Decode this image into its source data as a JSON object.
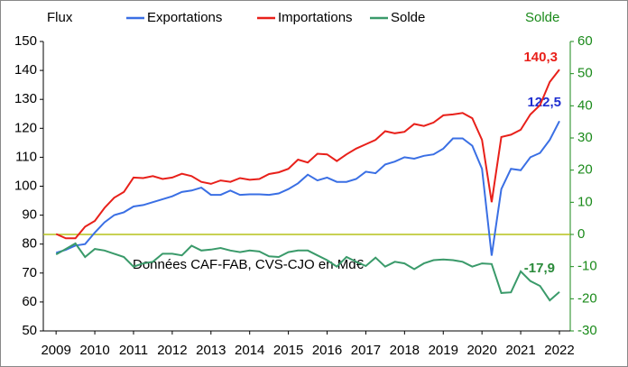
{
  "chart_data": {
    "type": "line",
    "y_label": "Flux",
    "y2_label": "Solde",
    "annotation": "Données CAF-FAB, CVS-CJO en Md€",
    "x": [
      2009,
      2009.25,
      2009.5,
      2009.75,
      2010,
      2010.25,
      2010.5,
      2010.75,
      2011,
      2011.25,
      2011.5,
      2011.75,
      2012,
      2012.25,
      2012.5,
      2012.75,
      2013,
      2013.25,
      2013.5,
      2013.75,
      2014,
      2014.25,
      2014.5,
      2014.75,
      2015,
      2015.25,
      2015.5,
      2015.75,
      2016,
      2016.25,
      2016.5,
      2016.75,
      2017,
      2017.25,
      2017.5,
      2017.75,
      2018,
      2018.25,
      2018.5,
      2018.75,
      2019,
      2019.25,
      2019.5,
      2019.75,
      2020,
      2020.25,
      2020.5,
      2020.75,
      2021,
      2021.25,
      2021.5,
      2021.75,
      2022
    ],
    "series": [
      {
        "name": "Exportations",
        "color": "#3a6fe4",
        "label_color": "#1f2fd0",
        "last_label": "122,5",
        "values": [
          77,
          78,
          79.5,
          80,
          84,
          87.5,
          90,
          91,
          93,
          93.5,
          94.5,
          95.5,
          96.5,
          98,
          98.5,
          99.5,
          97,
          97,
          98.5,
          97,
          97.2,
          97.2,
          97,
          97.5,
          99,
          101,
          104,
          102,
          103,
          101.5,
          101.5,
          102.5,
          105,
          104.5,
          107.5,
          108.5,
          110,
          109.5,
          110.5,
          111,
          113,
          116.5,
          116.5,
          114,
          106,
          76,
          99,
          106,
          105.5,
          110,
          111.5,
          116,
          122.5
        ]
      },
      {
        "name": "Importations",
        "color": "#e8201a",
        "label_color": "#e8201a",
        "last_label": "140,3",
        "values": [
          83.5,
          82,
          82,
          86,
          88,
          92.5,
          96,
          98,
          103,
          102.8,
          103.5,
          102.5,
          103,
          104.3,
          103.5,
          101.5,
          100.8,
          102,
          101.5,
          102.8,
          102.2,
          102.5,
          104.2,
          104.8,
          106,
          109.2,
          108.2,
          111.2,
          111,
          108.7,
          111,
          113,
          114.5,
          116,
          119,
          118.3,
          118.8,
          121.5,
          120.8,
          122,
          124.5,
          124.8,
          125.3,
          123.5,
          116,
          94.5,
          117,
          117.8,
          119.5,
          124.8,
          128,
          136,
          140.3
        ]
      },
      {
        "name": "Solde",
        "color": "#3a9a6a",
        "label_color": "#2a8a3a",
        "last_label": "-17,9",
        "axis": "y2",
        "values": [
          -6.2,
          -4.5,
          -2.8,
          -7,
          -4.5,
          -5,
          -6,
          -7,
          -10,
          -9,
          -8.5,
          -6,
          -6,
          -6.5,
          -3.5,
          -5,
          -4.7,
          -4.2,
          -5,
          -5.5,
          -5,
          -5.3,
          -6.8,
          -7,
          -5.5,
          -5,
          -5,
          -6.5,
          -8,
          -10,
          -7,
          -8.5,
          -9.8,
          -7.2,
          -10,
          -8.5,
          -9,
          -10.8,
          -9,
          -8,
          -7.8,
          -8,
          -8.5,
          -10,
          -9,
          -9.2,
          -18.2,
          -18,
          -11.5,
          -14.5,
          -16,
          -20.5,
          -17.9
        ]
      }
    ],
    "xlim": [
      2008.67,
      2022.28
    ],
    "xticks": [
      2009,
      2010,
      2011,
      2012,
      2013,
      2014,
      2015,
      2016,
      2017,
      2018,
      2019,
      2020,
      2021,
      2022
    ],
    "ylim": [
      50,
      150
    ],
    "yticks": [
      50,
      60,
      70,
      80,
      90,
      100,
      110,
      120,
      130,
      140,
      150
    ],
    "y2lim": [
      -30,
      60
    ],
    "y2ticks": [
      -30,
      -20,
      -10,
      0,
      10,
      20,
      30,
      40,
      50,
      60
    ],
    "zero_line_color": "#b5c21a"
  }
}
